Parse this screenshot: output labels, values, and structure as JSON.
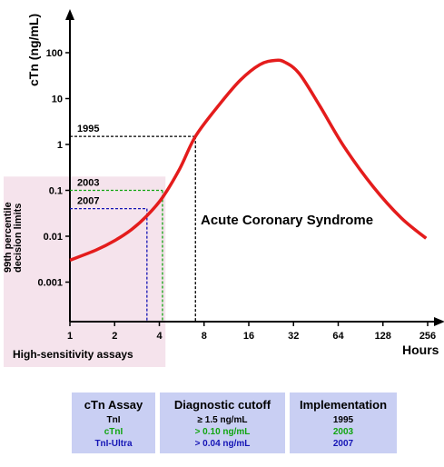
{
  "chart_data": {
    "type": "line",
    "ylabel": "cTn (ng/mL)",
    "xlabel": "Hours",
    "x_scale": "log2",
    "y_scale": "log10",
    "x_ticks": [
      1,
      2,
      4,
      8,
      16,
      32,
      64,
      128,
      256
    ],
    "y_ticks": [
      0.001,
      0.01,
      0.1,
      1,
      10,
      100
    ],
    "y_tick_labels": [
      "0.001",
      "0.01",
      "0.1",
      "1",
      "10",
      "100"
    ],
    "xlim": [
      1,
      300
    ],
    "ylim": [
      0.0001,
      1000
    ],
    "series": [
      {
        "name": "Acute Coronary Syndrome",
        "color": "#e41c1c",
        "x": [
          1,
          1.5,
          2,
          2.6,
          3.3,
          4.2,
          5.5,
          7,
          10,
          14,
          19,
          24,
          28,
          35,
          48,
          70,
          110,
          170,
          250
        ],
        "y": [
          0.003,
          0.005,
          0.008,
          0.014,
          0.028,
          0.07,
          0.3,
          1.5,
          7,
          25,
          55,
          68,
          62,
          35,
          7,
          0.9,
          0.12,
          0.025,
          0.009
        ]
      }
    ],
    "decision_limits": [
      {
        "label": "1995",
        "value": 1.5,
        "x": 7,
        "color": "#000000"
      },
      {
        "label": "2003",
        "value": 0.1,
        "x": 4.2,
        "color": "#11a511"
      },
      {
        "label": "2007",
        "value": 0.04,
        "x": 3.3,
        "color": "#1515b5"
      }
    ],
    "annotations": {
      "percentile_label": "99th percentile\ndecision limits",
      "hs_label": "High-sensitivity assays",
      "hs_xlim": [
        1,
        4.4
      ],
      "hs_ylim": [
        0.0001,
        0.2
      ],
      "hs_color": "#f5e3ec",
      "hs_text_color": "#8b1a1a"
    }
  },
  "table": {
    "col1": {
      "header": "cTn Assay",
      "rows": [
        "TnI",
        "cTnI",
        "TnI-Ultra"
      ]
    },
    "col2": {
      "header": "Diagnostic cutoff",
      "rows": [
        "≥ 1.5 ng/mL",
        "> 0.10 ng/mL",
        "> 0.04 ng/mL"
      ]
    },
    "col3": {
      "header": "Implementation",
      "rows": [
        "1995",
        "2003",
        "2007"
      ]
    },
    "row_colors": [
      "#000000",
      "#11a511",
      "#1515b5"
    ]
  }
}
